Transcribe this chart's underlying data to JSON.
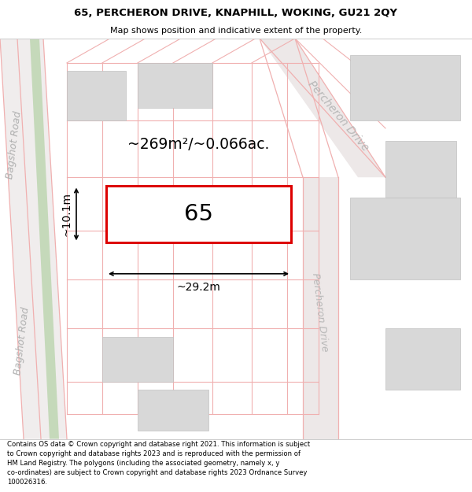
{
  "title": "65, PERCHERON DRIVE, KNAPHILL, WOKING, GU21 2QY",
  "subtitle": "Map shows position and indicative extent of the property.",
  "footer_text": "Contains OS data © Crown copyright and database right 2021. This information is subject\nto Crown copyright and database rights 2023 and is reproduced with the permission of\nHM Land Registry. The polygons (including the associated geometry, namely x, y\nco-ordinates) are subject to Crown copyright and database rights 2023 Ordnance Survey\n100026316.",
  "map_bg": "#fdf8f8",
  "road_line_color": "#f0b0b0",
  "building_fill": "#d8d8d8",
  "building_edge": "#c0c0c0",
  "highlight_color": "#dd0000",
  "label_65": "65",
  "area_label": "~269m²/~0.066ac.",
  "dim_width": "~29.2m",
  "dim_height": "~10.1m",
  "bagshot_road_label": "Bagshot Road",
  "percheron_drive_label_top": "Percheron Drive",
  "percheron_drive_label_bottom": "Percheron Drive",
  "green_strip_color": "#c5d9ba",
  "road_fill_color": "#f5eded",
  "perch_road_fill": "#ede8e8"
}
